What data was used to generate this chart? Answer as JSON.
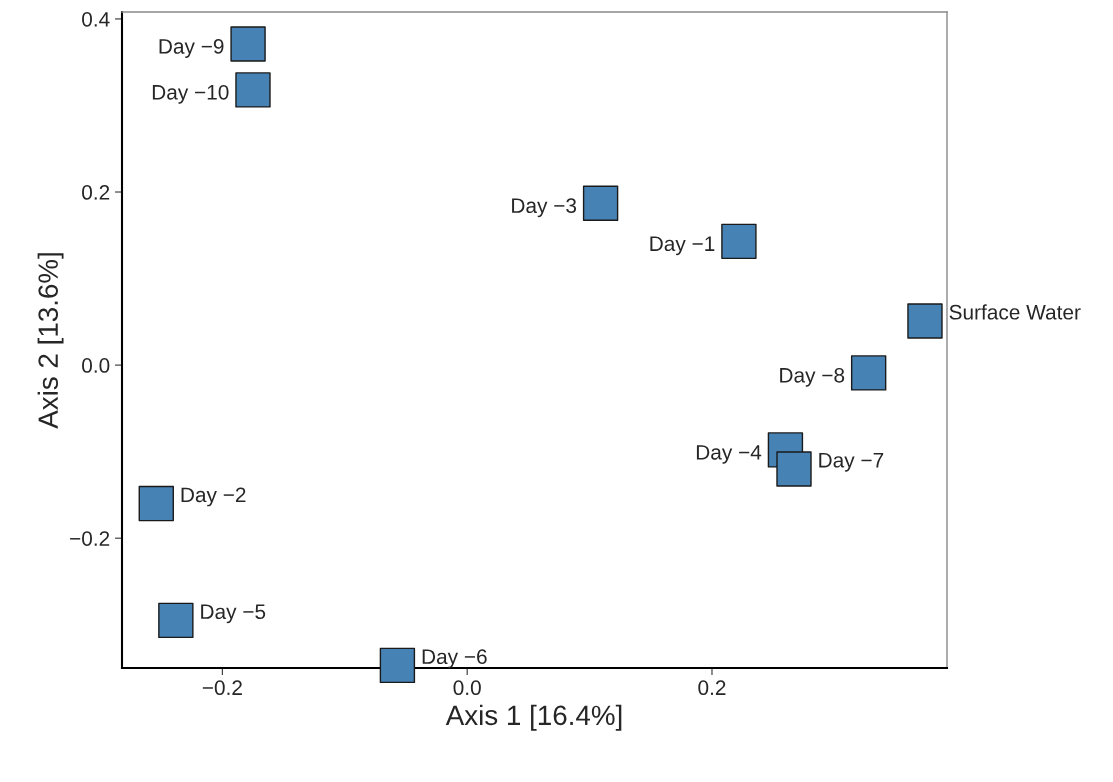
{
  "chart_data": {
    "type": "scatter",
    "xlabel": "Axis 1 [16.4%]",
    "ylabel": "Axis 2 [13.6%]",
    "xlim": [
      -0.282,
      0.392
    ],
    "ylim": [
      -0.35,
      0.408
    ],
    "xticks": [
      {
        "value": -0.2,
        "label": "−0.2"
      },
      {
        "value": 0.0,
        "label": "0.0"
      },
      {
        "value": 0.2,
        "label": "0.2"
      }
    ],
    "yticks": [
      {
        "value": -0.2,
        "label": "−0.2"
      },
      {
        "value": 0.0,
        "label": "0.0"
      },
      {
        "value": 0.2,
        "label": "0.2"
      },
      {
        "value": 0.4,
        "label": "0.4"
      }
    ],
    "grid": false,
    "marker": "square",
    "series": [
      {
        "color": "#4682b4",
        "x": [
          -0.179,
          -0.175,
          0.109,
          0.222,
          0.374,
          0.328,
          0.26,
          0.267,
          -0.254,
          -0.238,
          -0.057
        ],
        "values": [
          0.371,
          0.318,
          0.187,
          0.143,
          0.051,
          -0.009,
          -0.098,
          -0.12,
          -0.16,
          -0.295,
          -0.347
        ]
      }
    ],
    "annotations": [
      {
        "text": "Day −9",
        "x": -0.179,
        "y": 0.371
      },
      {
        "text": "Day −10",
        "x": -0.175,
        "y": 0.318
      },
      {
        "text": "Day −3",
        "x": 0.109,
        "y": 0.187
      },
      {
        "text": "Day −1",
        "x": 0.222,
        "y": 0.143
      },
      {
        "text": "Surface Water",
        "x": 0.374,
        "y": 0.051
      },
      {
        "text": "Day −8",
        "x": 0.328,
        "y": -0.009
      },
      {
        "text": "Day −4",
        "x": 0.26,
        "y": -0.098
      },
      {
        "text": "Day −7",
        "x": 0.267,
        "y": -0.12
      },
      {
        "text": "Day −2",
        "x": -0.254,
        "y": -0.16
      },
      {
        "text": "Day −5",
        "x": -0.238,
        "y": -0.295
      },
      {
        "text": "Day −6",
        "x": -0.057,
        "y": -0.347
      }
    ]
  }
}
